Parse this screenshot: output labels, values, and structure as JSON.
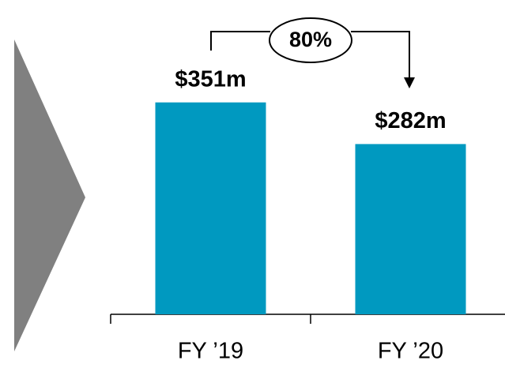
{
  "chart_data": {
    "type": "bar",
    "categories": [
      "FY ’19",
      "FY ’20"
    ],
    "values": [
      351,
      282
    ],
    "value_labels": [
      "$351m",
      "$282m"
    ],
    "annotation": "80%",
    "color": "#0099c0",
    "ylim": [
      0,
      450
    ]
  }
}
